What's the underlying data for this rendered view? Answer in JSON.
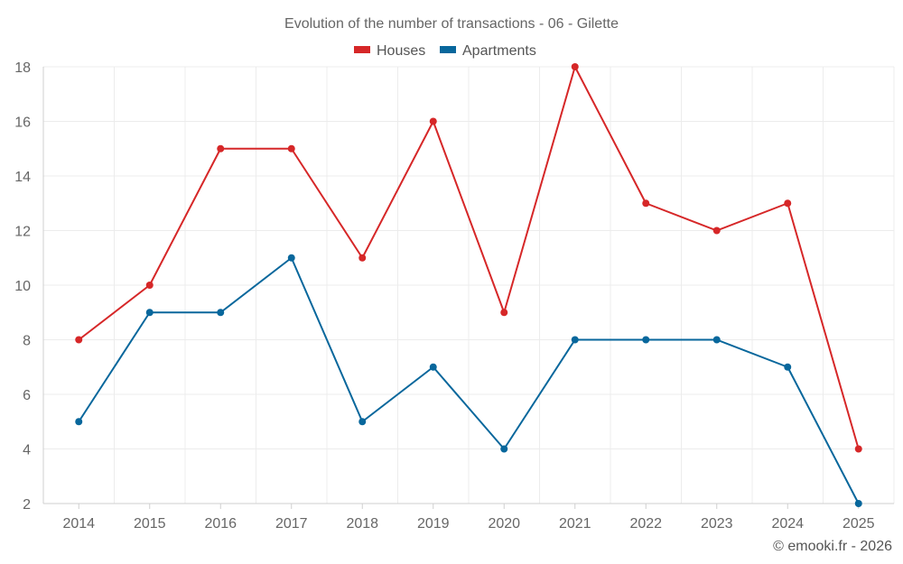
{
  "chart_data": {
    "type": "line",
    "title": "Evolution of the number of transactions - 06 - Gilette",
    "categories": [
      "2014",
      "2015",
      "2016",
      "2017",
      "2018",
      "2019",
      "2020",
      "2021",
      "2022",
      "2023",
      "2024",
      "2025"
    ],
    "series": [
      {
        "name": "Houses",
        "color": "#d62728",
        "values": [
          8,
          10,
          15,
          15,
          11,
          16,
          9,
          18,
          13,
          12,
          13,
          4
        ]
      },
      {
        "name": "Apartments",
        "color": "#08679c",
        "values": [
          5,
          9,
          9,
          11,
          5,
          7,
          4,
          8,
          8,
          8,
          7,
          2
        ]
      }
    ],
    "ylim": [
      2,
      18
    ],
    "yticks": [
      "2",
      "4",
      "6",
      "8",
      "10",
      "12",
      "14",
      "16",
      "18"
    ],
    "xlabel": "",
    "ylabel": "",
    "grid": true,
    "legend": "top-center"
  },
  "credit": "© emooki.fr - 2026"
}
